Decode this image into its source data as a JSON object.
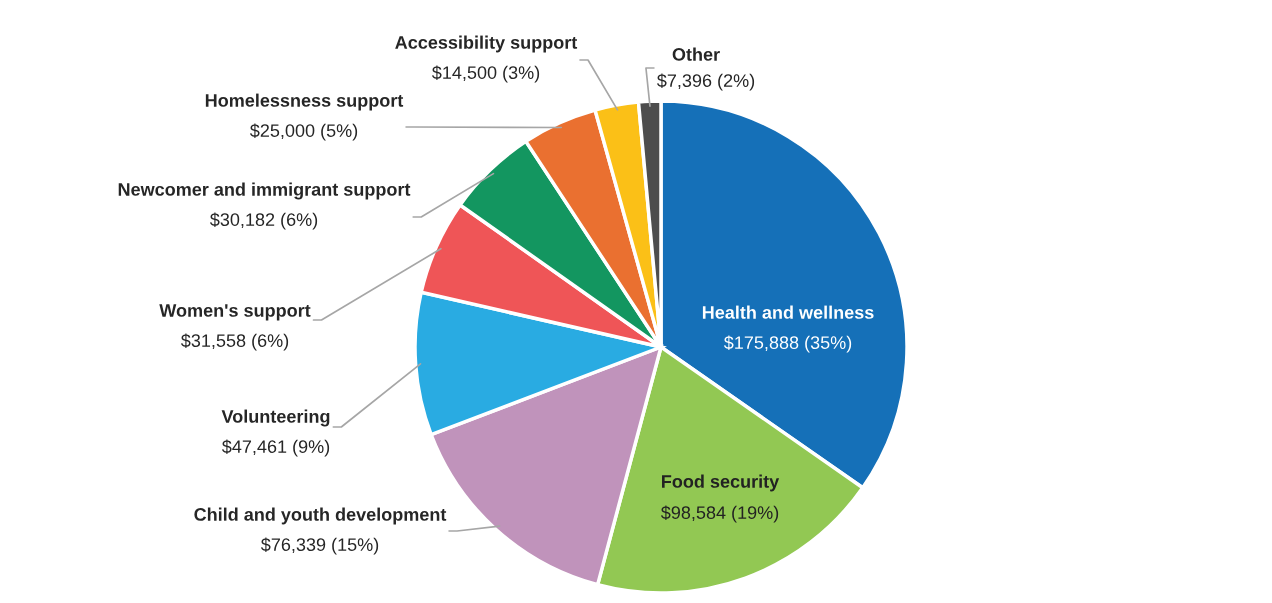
{
  "chart_data": {
    "type": "pie",
    "categories": [
      "Health and wellness",
      "Food security",
      "Child and youth development",
      "Volunteering",
      "Women's support",
      "Newcomer and immigrant support",
      "Homelessness support",
      "Accessibility support",
      "Other"
    ],
    "values": [
      175888,
      98584,
      76339,
      47461,
      31558,
      30182,
      25000,
      14500,
      7396
    ],
    "value_labels": [
      "$175,888 (35%)",
      "$98,584 (19%)",
      "$76,339 (15%)",
      "$47,461 (9%)",
      "$31,558 (6%)",
      "$30,182 (6%)",
      "$25,000 (5%)",
      "$14,500 (3%)",
      "$7,396 (2%)"
    ],
    "colors": [
      "#1570b8",
      "#92c853",
      "#c093bb",
      "#29abe2",
      "#ef5557",
      "#139660",
      "#ea7030",
      "#fbc017",
      "#4d4d4d"
    ]
  }
}
